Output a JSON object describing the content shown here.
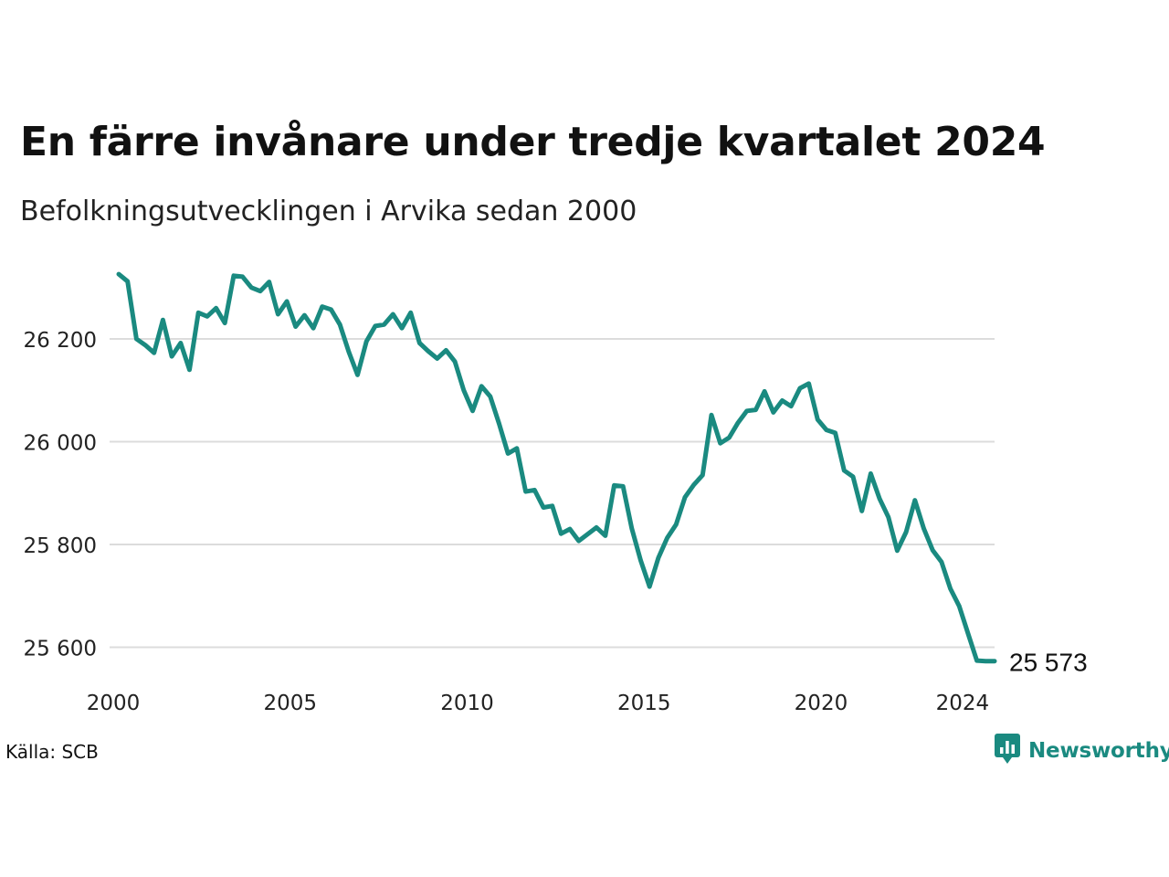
{
  "title": "En färre invånare under tredje kvartalet 2024",
  "subtitle": "Befolkningsutvecklingen i Arvika sedan 2000",
  "source": "Källa: SCB",
  "brand": {
    "name": "Newsworthy",
    "icon": "newsworthy-logo-icon",
    "color": "#1a8a80"
  },
  "chart_data": {
    "type": "line",
    "title": "En färre invånare under tredje kvartalet 2024",
    "subtitle": "Befolkningsutvecklingen i Arvika sedan 2000",
    "xlabel": "",
    "ylabel": "",
    "xlim": [
      2000,
      2024.75
    ],
    "ylim": [
      25540,
      26340
    ],
    "grid": "horizontal",
    "legend": "none",
    "line_color": "#1a8a80",
    "x_ticks": [
      {
        "value": 2000,
        "label": "2000"
      },
      {
        "value": 2005,
        "label": "2005"
      },
      {
        "value": 2010,
        "label": "2010"
      },
      {
        "value": 2015,
        "label": "2015"
      },
      {
        "value": 2020,
        "label": "2020"
      },
      {
        "value": 2024,
        "label": "2024"
      }
    ],
    "y_ticks": [
      {
        "value": 25600,
        "label": "25 600"
      },
      {
        "value": 25800,
        "label": "25 800"
      },
      {
        "value": 26000,
        "label": "26 000"
      },
      {
        "value": 26200,
        "label": "26 200"
      }
    ],
    "end_label": "25 573",
    "series": [
      {
        "quarters": [
          "2000 Q1",
          "2000 Q2",
          "2000 Q3",
          "2000 Q4",
          "2001 Q1",
          "2001 Q2",
          "2001 Q3",
          "2001 Q4",
          "2002 Q1",
          "2002 Q2",
          "2002 Q3",
          "2002 Q4",
          "2003 Q1",
          "2003 Q2",
          "2003 Q3",
          "2003 Q4",
          "2004 Q1",
          "2004 Q2",
          "2004 Q3",
          "2004 Q4",
          "2005 Q1",
          "2005 Q2",
          "2005 Q3",
          "2005 Q4",
          "2006 Q1",
          "2006 Q2",
          "2006 Q3",
          "2006 Q4",
          "2007 Q1",
          "2007 Q2",
          "2007 Q3",
          "2007 Q4",
          "2008 Q1",
          "2008 Q2",
          "2008 Q3",
          "2008 Q4",
          "2009 Q1",
          "2009 Q2",
          "2009 Q3",
          "2009 Q4",
          "2010 Q1",
          "2010 Q2",
          "2010 Q3",
          "2010 Q4",
          "2011 Q1",
          "2011 Q2",
          "2011 Q3",
          "2011 Q4",
          "2012 Q1",
          "2012 Q2",
          "2012 Q3",
          "2012 Q4",
          "2013 Q1",
          "2013 Q2",
          "2013 Q3",
          "2013 Q4",
          "2014 Q1",
          "2014 Q2",
          "2014 Q3",
          "2014 Q4",
          "2015 Q1",
          "2015 Q2",
          "2015 Q3",
          "2015 Q4",
          "2016 Q1",
          "2016 Q2",
          "2016 Q3",
          "2016 Q4",
          "2017 Q1",
          "2017 Q2",
          "2017 Q3",
          "2017 Q4",
          "2018 Q1",
          "2018 Q2",
          "2018 Q3",
          "2018 Q4",
          "2019 Q1",
          "2019 Q2",
          "2019 Q3",
          "2019 Q4",
          "2020 Q1",
          "2020 Q2",
          "2020 Q3",
          "2020 Q4",
          "2021 Q1",
          "2021 Q2",
          "2021 Q3",
          "2021 Q4",
          "2022 Q1",
          "2022 Q2",
          "2022 Q3",
          "2022 Q4",
          "2023 Q1",
          "2023 Q2",
          "2023 Q3",
          "2023 Q4",
          "2024 Q1",
          "2024 Q2",
          "2024 Q3"
        ],
        "values": [
          26326,
          26312,
          26200,
          26188,
          26173,
          26237,
          26166,
          26192,
          26140,
          26251,
          26244,
          26260,
          26231,
          26323,
          26321,
          26300,
          26293,
          26311,
          26248,
          26273,
          26224,
          26246,
          26221,
          26263,
          26257,
          26228,
          26175,
          26130,
          26195,
          26225,
          26228,
          26248,
          26221,
          26251,
          26192,
          26176,
          26162,
          26178,
          26156,
          26100,
          26060,
          26108,
          26088,
          26035,
          25977,
          25987,
          25903,
          25906,
          25872,
          25875,
          25821,
          25830,
          25807,
          25820,
          25833,
          25817,
          25915,
          25913,
          25831,
          25769,
          25718,
          25774,
          25813,
          25839,
          25892,
          25916,
          25935,
          26052,
          25997,
          26008,
          26037,
          26060,
          26062,
          26098,
          26057,
          26080,
          26069,
          26104,
          26113,
          26043,
          26023,
          26017,
          25944,
          25932,
          25865,
          25938,
          25889,
          25853,
          25788,
          25824,
          25886,
          25831,
          25789,
          25766,
          25714,
          25680,
          25627,
          25574,
          25573
        ]
      }
    ]
  }
}
